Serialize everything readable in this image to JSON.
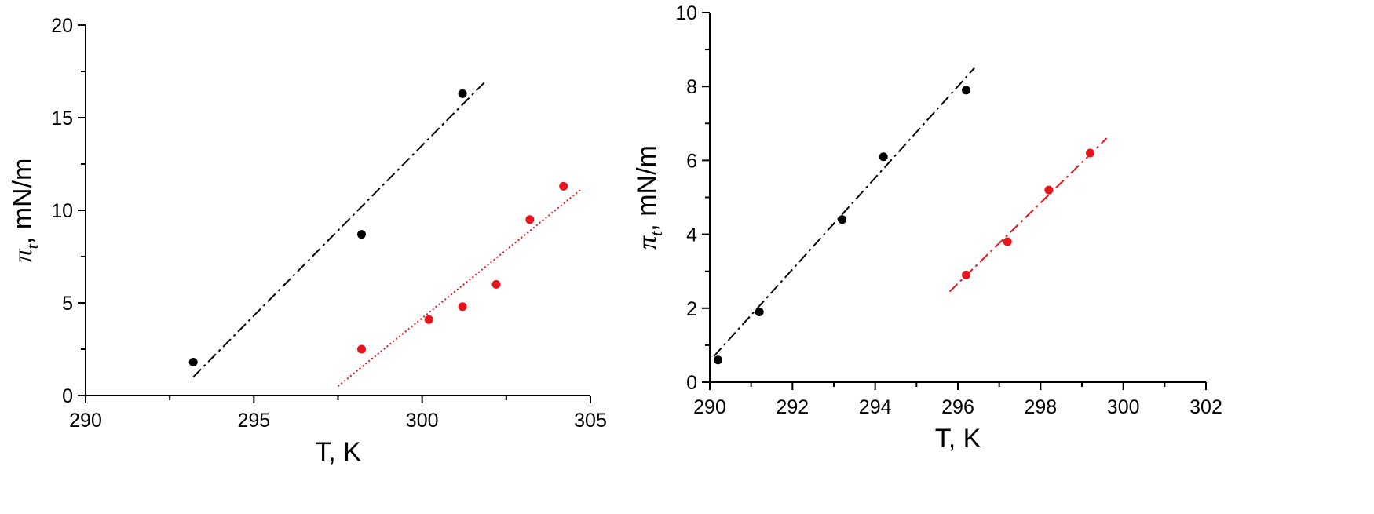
{
  "chart_data": [
    {
      "type": "scatter",
      "xlabel": "T, K",
      "ylabel": {
        "symbol": "π",
        "subscript": "t",
        "rest": ", mN/m"
      },
      "xlim": [
        290,
        305
      ],
      "ylim": [
        0,
        20
      ],
      "xticks": [
        290,
        295,
        300,
        305
      ],
      "yticks": [
        0,
        5,
        10,
        15,
        20
      ],
      "series": [
        {
          "color": "#000000",
          "x": [
            293.2,
            298.2,
            301.2
          ],
          "y": [
            1.8,
            8.7,
            16.3
          ],
          "fit": {
            "x": [
              293.2,
              301.9
            ],
            "y": [
              1.0,
              17.0
            ],
            "style": "dash-dot"
          }
        },
        {
          "color": "#e8141c",
          "x": [
            298.2,
            300.2,
            301.2,
            302.2,
            303.2,
            304.2
          ],
          "y": [
            2.5,
            4.1,
            4.8,
            6.0,
            9.5,
            11.3
          ],
          "fit": {
            "x": [
              297.5,
              304.7
            ],
            "y": [
              0.5,
              11.1
            ],
            "style": "dotted"
          }
        }
      ]
    },
    {
      "type": "scatter",
      "xlabel": "T, K",
      "ylabel": {
        "symbol": "π",
        "subscript": "t",
        "rest": ", mN/m"
      },
      "xlim": [
        290,
        302
      ],
      "ylim": [
        0,
        10
      ],
      "xticks": [
        290,
        292,
        294,
        296,
        298,
        300,
        302
      ],
      "yticks": [
        0,
        2,
        4,
        6,
        8,
        10
      ],
      "series": [
        {
          "color": "#000000",
          "x": [
            290.2,
            291.2,
            293.2,
            294.2,
            296.2
          ],
          "y": [
            0.6,
            1.9,
            4.4,
            6.1,
            7.9
          ],
          "fit": {
            "x": [
              290.1,
              296.4
            ],
            "y": [
              0.7,
              8.5
            ],
            "style": "dash-dot"
          }
        },
        {
          "color": "#e8141c",
          "x": [
            296.2,
            297.2,
            298.2,
            299.2
          ],
          "y": [
            2.9,
            3.8,
            5.2,
            6.2
          ],
          "fit": {
            "x": [
              295.8,
              299.6
            ],
            "y": [
              2.45,
              6.6
            ],
            "style": "dash-dot"
          }
        }
      ]
    }
  ]
}
